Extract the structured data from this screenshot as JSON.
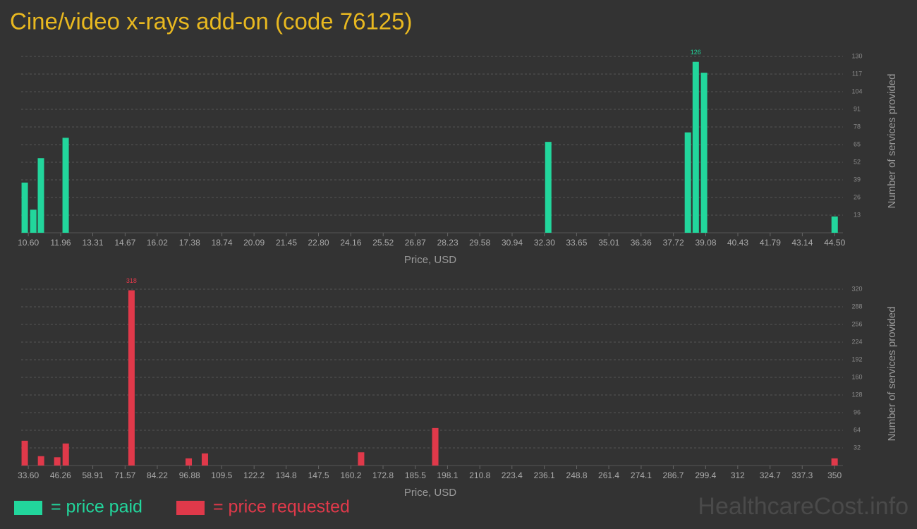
{
  "title": "Cine/video x-rays add-on (code 76125)",
  "watermark": "HealthcareCost.info",
  "chart_data": [
    {
      "type": "bar",
      "xlabel": "Price, USD",
      "ylabel": "Number of services provided",
      "grid": true,
      "label_max": true,
      "x": [
        10.45,
        10.81,
        11.13,
        12.17,
        32.46,
        38.33,
        38.66,
        39.01,
        44.5
      ],
      "series": [
        {
          "name": "= price paid",
          "color": "#22d69c",
          "values": [
            37,
            17,
            55,
            70,
            67,
            74,
            126,
            118,
            12
          ]
        }
      ],
      "xlim": [
        10.3,
        44.7
      ],
      "xticks": [
        {
          "value": 10.6,
          "label": "10.60"
        },
        11.96,
        13.31,
        14.67,
        16.02,
        17.38,
        18.74,
        20.09,
        21.45,
        {
          "value": 22.8,
          "label": "22.80"
        },
        24.16,
        25.52,
        26.87,
        28.23,
        29.58,
        30.94,
        {
          "value": 32.3,
          "label": "32.30"
        },
        33.65,
        35.01,
        36.36,
        37.72,
        39.08,
        40.43,
        41.79,
        43.14,
        {
          "value": 44.5,
          "label": "44.50"
        }
      ],
      "ylim": [
        0,
        130
      ],
      "yticks": [
        13,
        26,
        39,
        52,
        65,
        78,
        91,
        104,
        117,
        130
      ]
    },
    {
      "type": "bar",
      "xlabel": "Price, USD",
      "ylabel": "Number of services provided",
      "grid": true,
      "label_max": true,
      "x": [
        32.2,
        38.6,
        44.97,
        48.3,
        74.1,
        96.55,
        102.9,
        164.2,
        193.3,
        350
      ],
      "series": [
        {
          "name": "= price requested",
          "color": "#e0394a",
          "values": [
            45,
            17,
            15,
            40,
            318,
            13,
            22,
            24,
            68,
            13
          ]
        }
      ],
      "xlim": [
        30.8,
        351.9
      ],
      "xticks": [
        {
          "value": 33.6,
          "label": "33.60"
        },
        46.26,
        58.91,
        71.57,
        84.22,
        96.88,
        109.5,
        122.2,
        134.8,
        147.5,
        160.2,
        172.8,
        185.5,
        198.1,
        210.8,
        223.4,
        236.1,
        248.8,
        261.4,
        274.1,
        286.7,
        299.4,
        312,
        324.7,
        337.3,
        350
      ],
      "ylim": [
        0,
        320
      ],
      "yticks": [
        32,
        64,
        96,
        128,
        160,
        192,
        224,
        256,
        288,
        320
      ]
    }
  ]
}
